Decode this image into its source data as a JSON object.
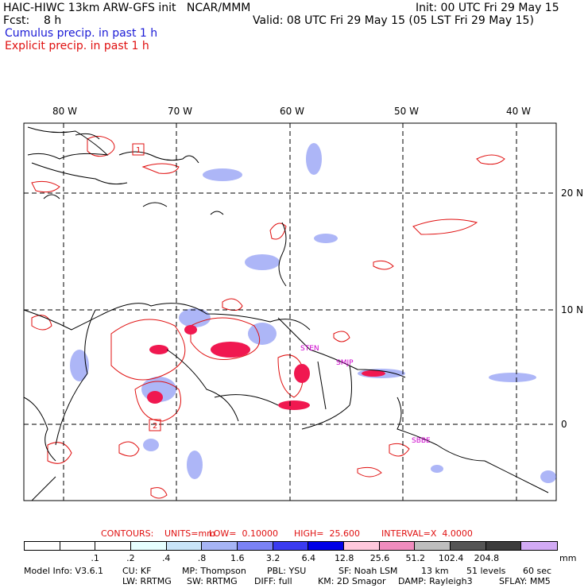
{
  "header": {
    "title": "HAIC-HIWC 13km ARW-GFS init   NCAR/MMM",
    "init": "Init: 00 UTC Fri 29 May 15",
    "fcst": "Fcst:    8 h",
    "valid": "Valid: 08 UTC Fri 29 May 15 (05 LST Fri 29 May 15)",
    "legend_cumulus": "Cumulus precip. in past 1 h",
    "legend_explicit": "Explicit precip. in past 1 h"
  },
  "map": {
    "longitude_labels": [
      "80 W",
      "70 W",
      "60 W",
      "50 W",
      "40 W"
    ],
    "latitude_labels": [
      "20 N",
      "10 N",
      "0"
    ],
    "station_labels": [
      "STEN",
      "SMJP",
      "SBBE"
    ],
    "box_labels": [
      "1",
      "2"
    ],
    "colors": {
      "coast": "#000000",
      "grid": "#000000",
      "cumulus": "#5a6cf0",
      "explicit": "#e01010",
      "station": "#cc00cc"
    }
  },
  "contours": {
    "prefix": "CONTOURS:",
    "units": "UNITS=mm",
    "low": "LOW=  0.10000",
    "high": "HIGH=  25.600",
    "interval": "INTERVAL=X  4.0000"
  },
  "colorbar": {
    "labels": [
      ".1",
      ".2",
      ".4",
      ".8",
      "1.6",
      "3.2",
      "6.4",
      "12.8",
      "25.6",
      "51.2",
      "102.4",
      "204.8"
    ],
    "unit": "mm",
    "colors": [
      "#ffffff",
      "#ffffff",
      "#ffffff",
      "#e6ffff",
      "#c9e4f8",
      "#a6b4f5",
      "#7b82f5",
      "#3b3bf0",
      "#0000e6",
      "#ffc8dc",
      "#f08cbe",
      "#bebebe",
      "#555555",
      "#3c3c3c",
      "#d2aaf5"
    ]
  },
  "model_info": {
    "line1": [
      "Model Info: V3.6.1",
      "CU: KF",
      "MP: Thompson",
      "PBL: YSU",
      "SF: Noah LSM",
      "13 km",
      "51 levels",
      "60 sec"
    ],
    "line2": [
      "LW: RRTMG",
      "SW: RRTMG",
      "DIFF: full",
      "KM: 2D Smagor",
      "DAMP: Rayleigh3",
      "SFLAY: MM5"
    ]
  }
}
